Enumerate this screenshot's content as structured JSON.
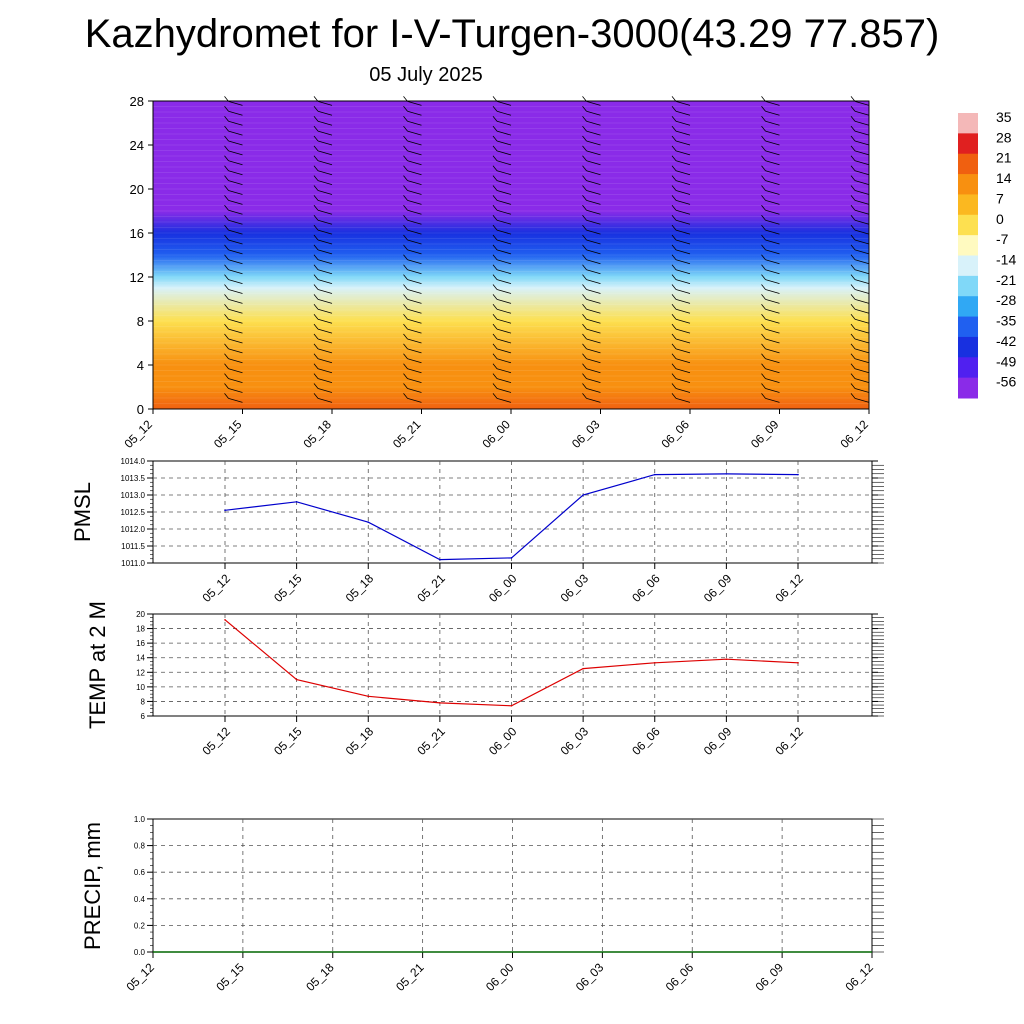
{
  "title": "Kazhydromet for I-V-Turgen-3000(43.29 77.857)",
  "subtitle": "05 July 2025",
  "chart_data": [
    {
      "type": "heatmap",
      "name": "temperature-cross-section",
      "title": "",
      "ylabel": "",
      "x": [
        "05_12",
        "05_15",
        "05_18",
        "05_21",
        "06_00",
        "06_03",
        "06_06",
        "06_09",
        "06_12"
      ],
      "y_ticks": [
        0,
        4,
        8,
        12,
        16,
        20,
        24,
        28
      ],
      "ylim": [
        0,
        28
      ],
      "colorbar": {
        "labels": [
          "35",
          "28",
          "21",
          "14",
          "7",
          "0",
          "-7",
          "-14",
          "-21",
          "-28",
          "-35",
          "-42",
          "-49",
          "-56"
        ],
        "colors": [
          "#f4b8b8",
          "#e02020",
          "#f06010",
          "#f89010",
          "#fbb820",
          "#fde050",
          "#fffac0",
          "#d8f2fa",
          "#80d8f8",
          "#30a8f4",
          "#2060f0",
          "#1830e0",
          "#5020f0",
          "#8a2be8"
        ]
      },
      "levels": [
        {
          "height": 0,
          "value": 22
        },
        {
          "height": 2,
          "value": 18
        },
        {
          "height": 4,
          "value": 14
        },
        {
          "height": 8,
          "value": 5
        },
        {
          "height": 11,
          "value": -8
        },
        {
          "height": 12,
          "value": -17
        },
        {
          "height": 14,
          "value": -30
        },
        {
          "height": 16,
          "value": -40
        },
        {
          "height": 18,
          "value": -55
        },
        {
          "height": 20,
          "value": -50
        },
        {
          "height": 22,
          "value": -60
        },
        {
          "height": 28,
          "value": -62
        }
      ],
      "wind_barb_columns": [
        "05_15",
        "05_18",
        "05_21",
        "06_00",
        "06_03",
        "06_06",
        "06_09",
        "06_12"
      ]
    },
    {
      "type": "line",
      "name": "pmsl",
      "ylabel": "PMSL",
      "categories": [
        "05_12",
        "05_15",
        "05_18",
        "05_21",
        "06_00",
        "06_03",
        "06_06",
        "06_09",
        "06_12"
      ],
      "values": [
        1012.55,
        1012.8,
        1012.2,
        1011.1,
        1011.15,
        1013.0,
        1013.6,
        1013.62,
        1013.6
      ],
      "ylim": [
        1011.0,
        1014.0
      ],
      "yticks": [
        "1011.0",
        "1011.5",
        "1012.0",
        "1012.5",
        "1013.0",
        "1013.5",
        "1014.0"
      ],
      "color": "#0000cc",
      "grid": true
    },
    {
      "type": "line",
      "name": "temp-2m",
      "ylabel": "TEMP at 2 M",
      "categories": [
        "05_12",
        "05_15",
        "05_18",
        "05_21",
        "06_00",
        "06_03",
        "06_06",
        "06_09",
        "06_12"
      ],
      "values": [
        19.2,
        11.0,
        8.7,
        7.8,
        7.4,
        12.5,
        13.3,
        13.8,
        13.3
      ],
      "ylim": [
        6,
        20
      ],
      "yticks": [
        "6",
        "8",
        "10",
        "12",
        "14",
        "16",
        "18",
        "20"
      ],
      "color": "#dd0000",
      "grid": true
    },
    {
      "type": "line",
      "name": "precip",
      "ylabel": "PRECIP, mm",
      "categories": [
        "05_12",
        "05_15",
        "05_18",
        "05_21",
        "06_00",
        "06_03",
        "06_06",
        "06_09",
        "06_12"
      ],
      "values": [
        0,
        0,
        0,
        0,
        0,
        0,
        0,
        0,
        0
      ],
      "ylim": [
        0,
        1.0
      ],
      "yticks": [
        "0.0",
        "0.2",
        "0.4",
        "0.6",
        "0.8",
        "1.0"
      ],
      "color": "#006600",
      "grid": true
    }
  ]
}
